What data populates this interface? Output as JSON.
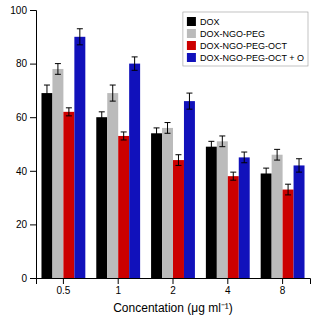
{
  "chart_data": {
    "type": "bar",
    "xlabel": "Concentation (μg ml⁻¹)",
    "categories": [
      "0.5",
      "1",
      "2",
      "4",
      "8"
    ],
    "series": [
      {
        "name": "DOX",
        "color": "#000000",
        "values": [
          69,
          60,
          54,
          49,
          39
        ],
        "errors": [
          3,
          2,
          2,
          2,
          2
        ]
      },
      {
        "name": "DOX-NGO-PEG",
        "color": "#bbbbbb",
        "values": [
          78,
          69,
          56,
          51,
          46
        ],
        "errors": [
          2,
          3,
          2,
          2,
          2
        ]
      },
      {
        "name": "DOX-NGO-PEG-OCT",
        "color": "#cc0000",
        "values": [
          62,
          53,
          44,
          38,
          33
        ],
        "errors": [
          1.5,
          1.5,
          2,
          1.5,
          2
        ]
      },
      {
        "name": "DOX-NGO-PEG-OCT + O",
        "color": "#1111bb",
        "values": [
          90,
          80,
          66,
          45,
          42
        ],
        "errors": [
          3,
          2.5,
          3,
          2,
          2.5
        ]
      }
    ],
    "ylim": [
      0,
      100
    ],
    "yticks": [
      0,
      20,
      40,
      60,
      80,
      100
    ],
    "legend": "upper right",
    "grid": false
  }
}
